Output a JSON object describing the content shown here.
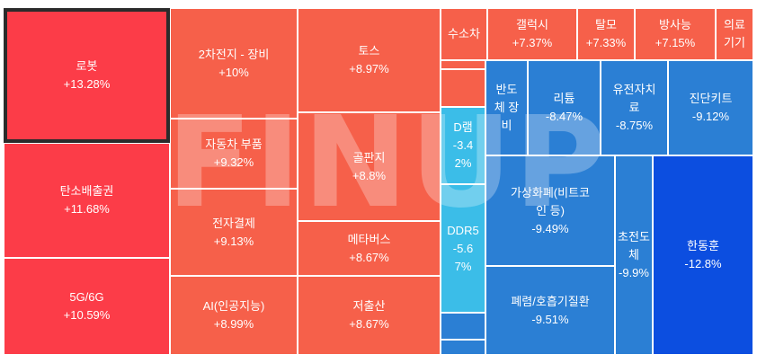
{
  "heatmap": {
    "tiles": [
      {
        "label": "로봇",
        "change": "+13.28%",
        "color": "#fc3c48",
        "selected": true
      },
      {
        "label": "탄소배출권",
        "change": "+11.68%",
        "color": "#fc3c48"
      },
      {
        "label": "5G/6G",
        "change": "+10.59%",
        "color": "#fc3c48"
      },
      {
        "label": "2차전지 - 장비",
        "change": "+10%",
        "color": "#f6604a"
      },
      {
        "label": "자동차 부품",
        "change": "+9.32%",
        "color": "#f6604a"
      },
      {
        "label": "전자결제",
        "change": "+9.13%",
        "color": "#f6604a"
      },
      {
        "label": "AI(인공지능)",
        "change": "+8.99%",
        "color": "#f6604a"
      },
      {
        "label": "토스",
        "change": "+8.97%",
        "color": "#f6604a"
      },
      {
        "label": "골판지",
        "change": "+8.8%",
        "color": "#f6604a"
      },
      {
        "label": "메타버스",
        "change": "+8.67%",
        "color": "#f6604a"
      },
      {
        "label": "저출산",
        "change": "+8.67%",
        "color": "#f6604a"
      },
      {
        "label": "수소차",
        "change": "",
        "color": "#f6604a"
      },
      {
        "label": "갤럭시",
        "change": "+7.37%",
        "color": "#f6604a"
      },
      {
        "label": "탈모",
        "change": "+7.33%",
        "color": "#f6604a"
      },
      {
        "label": "방사능",
        "change": "+7.15%",
        "color": "#f6604a"
      },
      {
        "label": "의료\n기기",
        "change": "",
        "color": "#f6604a"
      },
      {
        "label": "",
        "change": "",
        "color": "#f6604a"
      },
      {
        "label": "",
        "change": "",
        "color": "#f6604a"
      },
      {
        "label": "반도\n체 장\n비",
        "change": "",
        "color": "#2b7fd4"
      },
      {
        "label": "리튬",
        "change": "-8.47%",
        "color": "#2b7fd4"
      },
      {
        "label": "유전자치\n료",
        "change": "-8.75%",
        "color": "#2b7fd4"
      },
      {
        "label": "진단키트",
        "change": "-9.12%",
        "color": "#2b7fd4"
      },
      {
        "label": "D램",
        "change": "-3.4\n2%",
        "color": "#3bbde8"
      },
      {
        "label": "DDR5",
        "change": "-5.6\n7%",
        "color": "#3bbde8"
      },
      {
        "label": "",
        "change": "",
        "color": "#2b7fd4"
      },
      {
        "label": "",
        "change": "",
        "color": "#2b7fd4"
      },
      {
        "label": "가상화폐(비트코\n인 등)",
        "change": "-9.49%",
        "color": "#2b7fd4"
      },
      {
        "label": "폐렴/호흡기질환",
        "change": "-9.51%",
        "color": "#2b7fd4"
      },
      {
        "label": "초전도체",
        "change": "-9.9%",
        "color": "#2b7fd4"
      },
      {
        "label": "한동훈",
        "change": "-12.8%",
        "color": "#0c4ee0"
      }
    ],
    "watermark": "FINUP"
  }
}
